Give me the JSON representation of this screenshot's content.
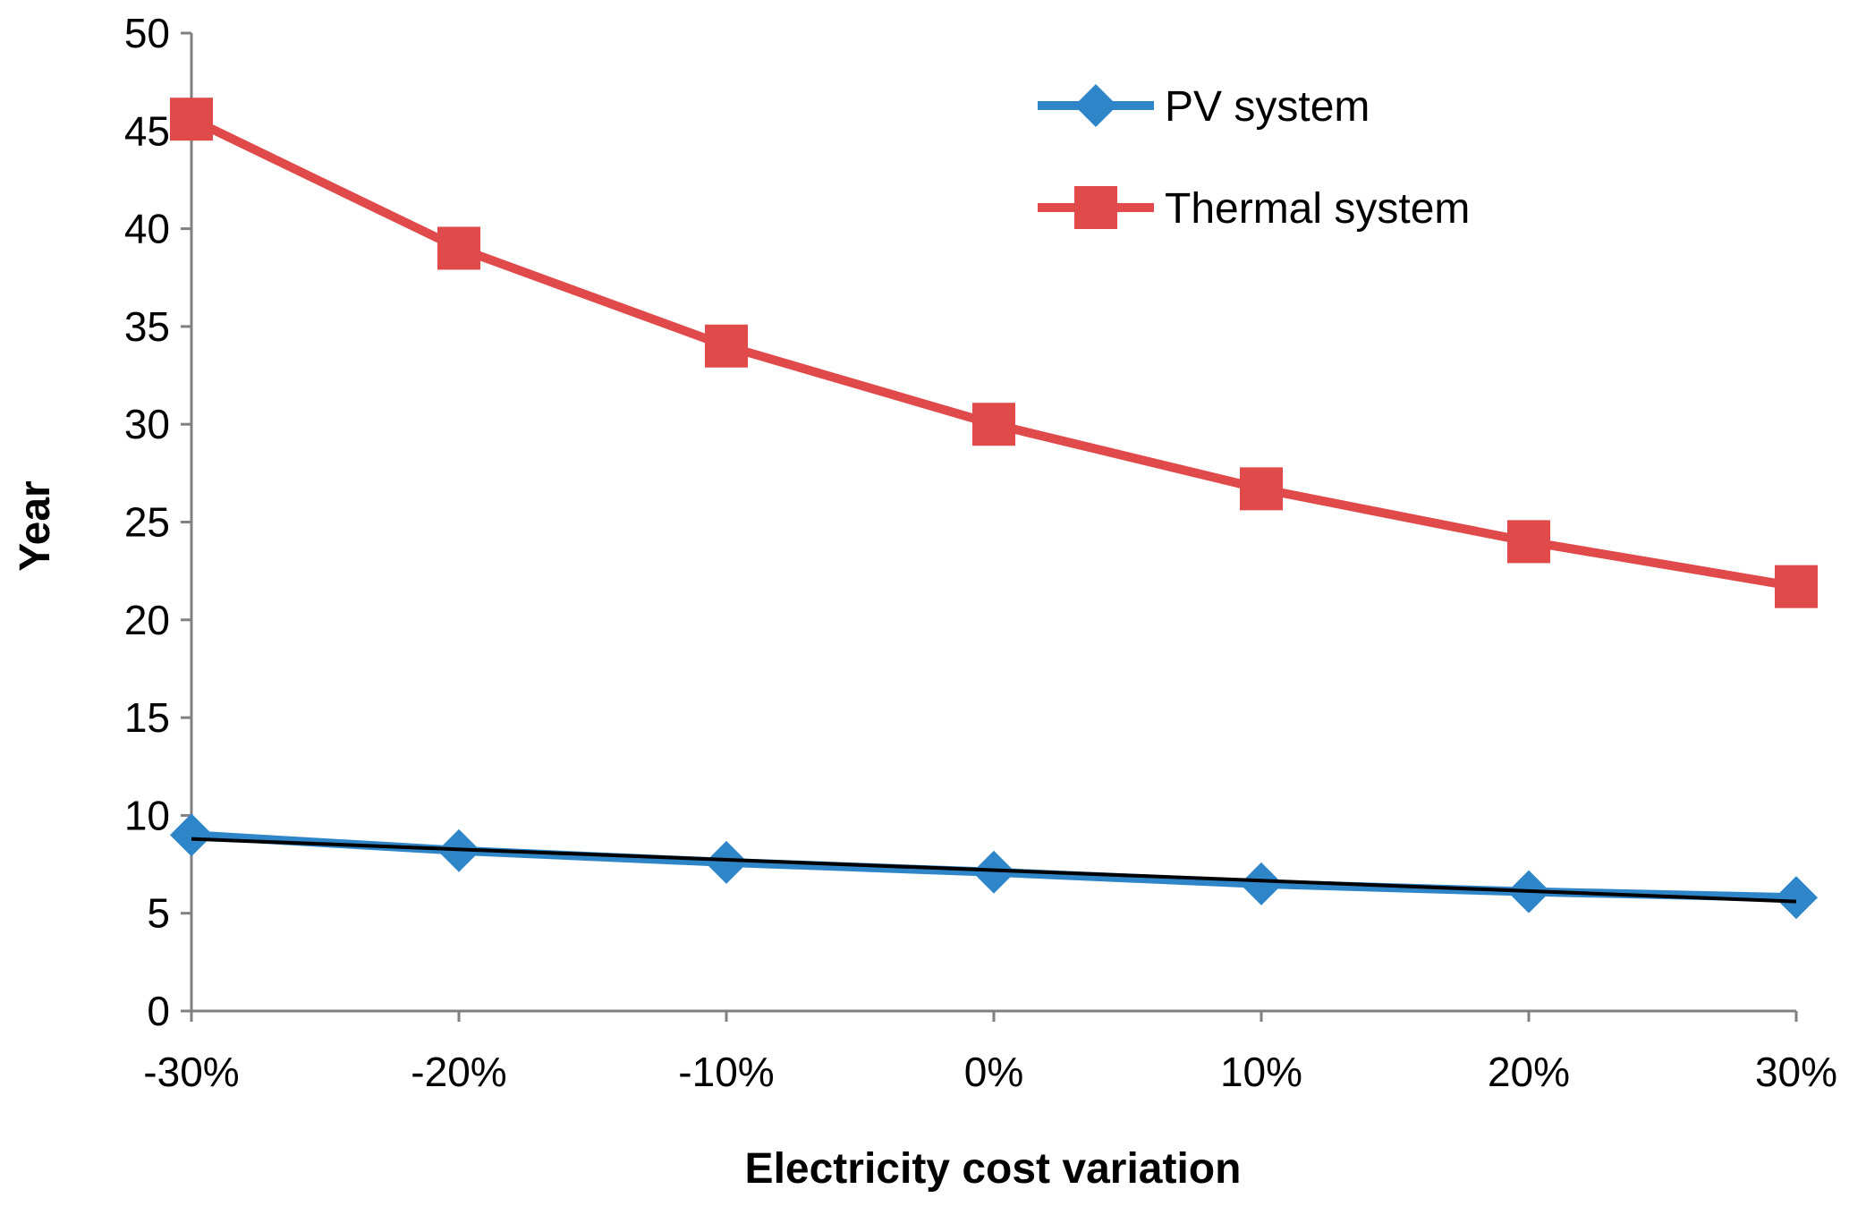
{
  "chart_data": {
    "type": "line",
    "title": "",
    "xlabel": "Electricity cost variation",
    "ylabel": "Year",
    "categories": [
      "-30%",
      "-20%",
      "-10%",
      "0%",
      "10%",
      "20%",
      "30%"
    ],
    "ylim": [
      0,
      50
    ],
    "yticks": [
      "0",
      "5",
      "10",
      "15",
      "20",
      "25",
      "30",
      "35",
      "40",
      "45",
      "50"
    ],
    "grid": false,
    "legend_position": "top-right",
    "series": [
      {
        "name": "PV system",
        "marker": "diamond",
        "color": "#2e86c8",
        "values": [
          9.0,
          8.2,
          7.6,
          7.1,
          6.5,
          6.1,
          5.8
        ],
        "trendline": {
          "color": "#000000",
          "start": 8.8,
          "end": 5.6
        }
      },
      {
        "name": "Thermal system",
        "marker": "square",
        "color": "#e04a4a",
        "values": [
          45.6,
          39.0,
          34.0,
          30.0,
          26.7,
          24.0,
          21.7
        ]
      }
    ]
  }
}
